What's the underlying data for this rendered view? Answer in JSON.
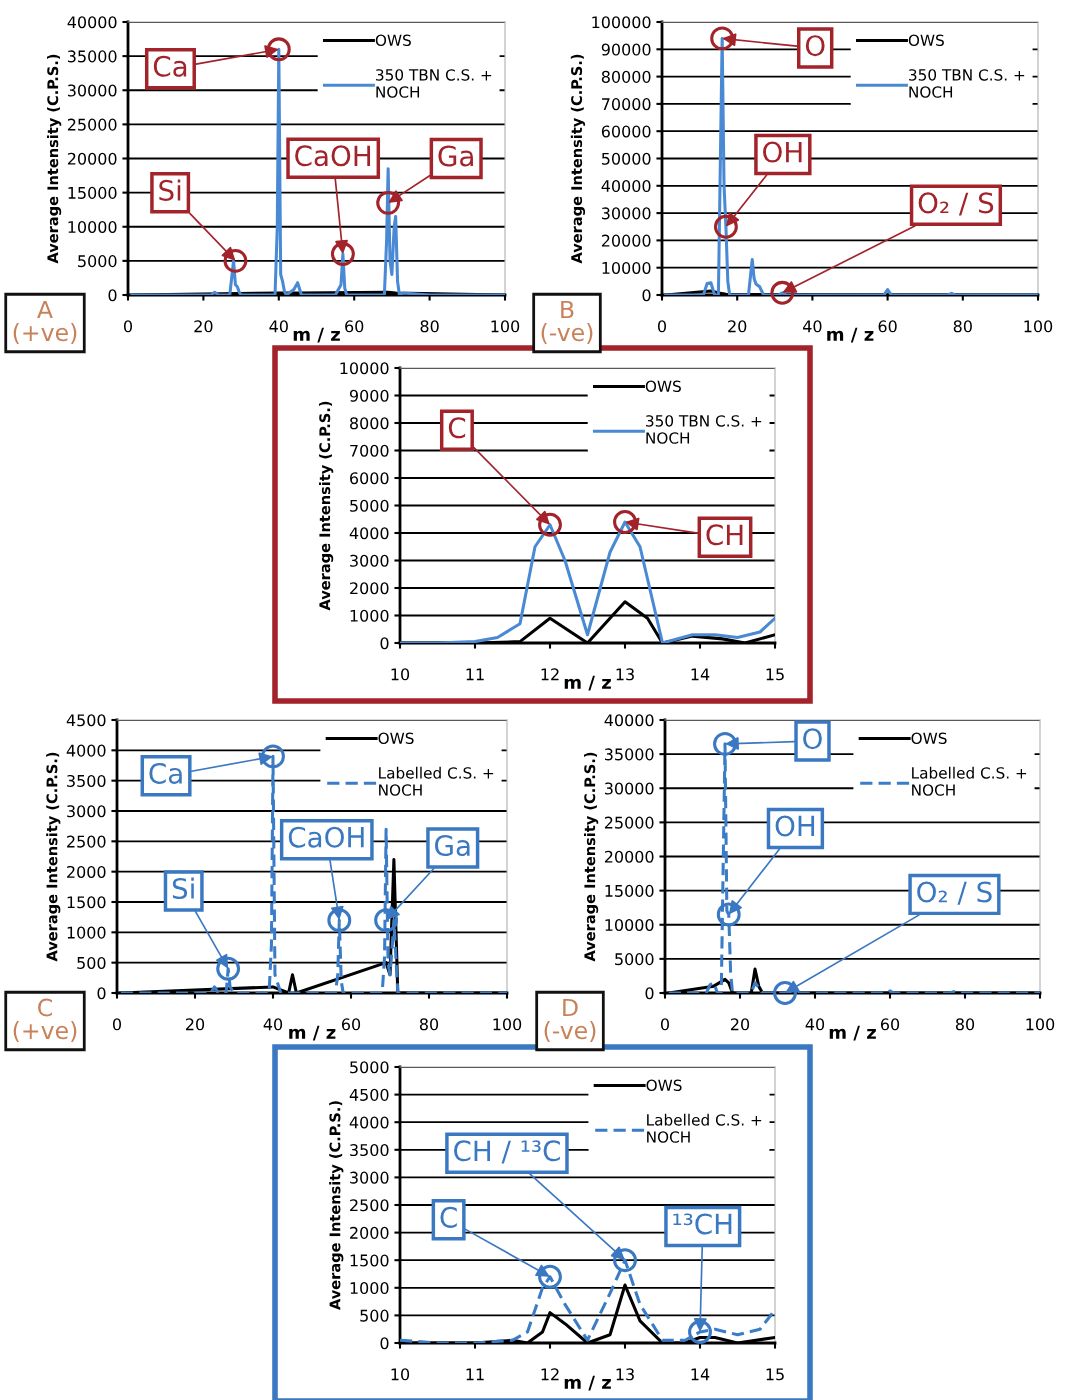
{
  "chart_data": [
    {
      "type": "line",
      "xlabel": "m / z",
      "ylabel": "Average Intensity (C.P.S.)",
      "xlim": [
        0,
        100
      ],
      "xticks": [
        0,
        20,
        40,
        60,
        80,
        100
      ],
      "ylim": [
        0,
        40000
      ],
      "yticks": [
        0,
        5000,
        10000,
        15000,
        20000,
        25000,
        30000,
        35000,
        40000
      ],
      "grid": "y",
      "legend": "top right",
      "series": [
        {
          "name": "OWS",
          "color": "#000000",
          "line_style": "solid",
          "x": [
            1,
            40,
            45,
            69,
            71,
            100
          ],
          "values": [
            0,
            300,
            300,
            400,
            300,
            0
          ]
        },
        {
          "name": "350 TBN C.S. +\nNOCH",
          "color": "#4a8ad4",
          "line_style": "solid",
          "x": [
            1,
            22,
            23,
            24,
            27,
            27.6,
            28,
            28.5,
            29,
            29.6,
            30,
            39,
            39.6,
            40,
            40.5,
            41,
            41.5,
            42,
            44,
            45,
            46,
            55,
            56.5,
            57,
            57.5,
            58,
            68,
            68.6,
            69,
            69.5,
            70,
            70.6,
            71,
            71.5,
            72,
            73,
            80,
            100
          ],
          "values": [
            0,
            0,
            400,
            0,
            0,
            3000,
            5000,
            1500,
            1200,
            300,
            0,
            0,
            10000,
            36000,
            3000,
            2000,
            500,
            0,
            800,
            1800,
            0,
            0,
            1500,
            6000,
            1000,
            0,
            0,
            8000,
            18500,
            5000,
            3000,
            10000,
            11500,
            2000,
            0,
            300,
            0,
            0
          ]
        }
      ],
      "annotations": [
        {
          "text": "Si",
          "x": 28.5,
          "y": 5000
        },
        {
          "text": "Ca",
          "x": 40,
          "y": 36000
        },
        {
          "text": "CaOH",
          "x": 57,
          "y": 6000
        },
        {
          "text": "Ga",
          "x": 69,
          "y": 13500
        },
        "A\n(+ve)"
      ]
    },
    {
      "type": "line",
      "xlabel": "m / z",
      "ylabel": "Average Intensity (C.P.S.)",
      "xlim": [
        0,
        100
      ],
      "xticks": [
        0,
        20,
        40,
        60,
        80,
        100
      ],
      "ylim": [
        0,
        100000
      ],
      "yticks": [
        0,
        10000,
        20000,
        30000,
        40000,
        50000,
        60000,
        70000,
        80000,
        90000,
        100000
      ],
      "grid": "y",
      "legend": "top right",
      "series": [
        {
          "name": "OWS",
          "color": "#000000",
          "line_style": "solid",
          "x": [
            1,
            13,
            16,
            17,
            24,
            100
          ],
          "values": [
            0,
            1500,
            500,
            300,
            200,
            0
          ]
        },
        {
          "name": "350 TBN C.S. +\nNOCH",
          "color": "#4a8ad4",
          "line_style": "solid",
          "x": [
            1,
            11,
            12,
            13,
            14,
            15,
            16,
            16.5,
            17,
            17.5,
            18,
            23,
            24,
            24.5,
            25,
            26,
            27,
            31,
            32,
            33,
            45,
            59,
            60,
            61,
            76,
            77,
            78,
            100
          ],
          "values": [
            0,
            0,
            4200,
            4500,
            0,
            0,
            94000,
            40000,
            25000,
            5000,
            0,
            0,
            13000,
            6000,
            4000,
            3000,
            0,
            0,
            800,
            0,
            0,
            0,
            2000,
            0,
            0,
            600,
            0,
            0
          ]
        }
      ],
      "annotations": [
        {
          "text": "O",
          "x": 16,
          "y": 94000
        },
        {
          "text": "OH",
          "x": 17,
          "y": 25000
        },
        {
          "text": "O₂ / S",
          "x": 32,
          "y": 800
        },
        "B\n(-ve)"
      ]
    },
    {
      "type": "line",
      "xlabel": "m / z",
      "ylabel": "Average Intensity (C.P.S.)",
      "xlim": [
        10,
        15
      ],
      "xticks": [
        10,
        11,
        12,
        13,
        14,
        15
      ],
      "ylim": [
        0,
        10000
      ],
      "yticks": [
        0,
        1000,
        2000,
        3000,
        4000,
        5000,
        6000,
        7000,
        8000,
        9000,
        10000
      ],
      "grid": "y",
      "legend": "top right",
      "series": [
        {
          "name": "OWS",
          "color": "#000000",
          "line_style": "solid",
          "x": [
            10,
            11,
            11.6,
            12,
            12.5,
            13,
            13.3,
            13.5,
            13.9,
            14.3,
            14.6,
            15
          ],
          "values": [
            0,
            0,
            50,
            900,
            0,
            1500,
            900,
            0,
            250,
            150,
            0,
            300
          ]
        },
        {
          "name": "350 TBN C.S. +\nNOCH",
          "color": "#4a8ad4",
          "line_style": "solid",
          "x": [
            10,
            10.5,
            11,
            11.3,
            11.6,
            11.8,
            12,
            12.2,
            12.5,
            12.8,
            13,
            13.2,
            13.5,
            13.9,
            14.2,
            14.5,
            14.8,
            15
          ],
          "values": [
            0,
            0,
            50,
            200,
            700,
            3500,
            4300,
            3000,
            300,
            3300,
            4400,
            3500,
            0,
            300,
            300,
            200,
            400,
            900
          ]
        }
      ],
      "annotations": [
        {
          "text": "C",
          "x": 12,
          "y": 4300
        },
        {
          "text": "CH",
          "x": 13,
          "y": 4400
        }
      ]
    },
    {
      "type": "line",
      "xlabel": "m / z",
      "ylabel": "Average Intensity (C.P.S.)",
      "xlim": [
        0,
        100
      ],
      "xticks": [
        0,
        20,
        40,
        60,
        80,
        100
      ],
      "ylim": [
        0,
        4500
      ],
      "yticks": [
        0,
        500,
        1000,
        1500,
        2000,
        2500,
        3000,
        3500,
        4000,
        4500
      ],
      "grid": "y",
      "legend": "top right",
      "series": [
        {
          "name": "OWS",
          "color": "#000000",
          "line_style": "solid",
          "x": [
            1,
            40,
            44,
            45,
            46,
            69,
            70,
            71,
            72,
            100
          ],
          "values": [
            0,
            100,
            0,
            300,
            0,
            500,
            300,
            2200,
            0,
            0
          ]
        },
        {
          "name": "Labelled C.S. +\nNOCH",
          "color": "#3a7cc8",
          "line_style": "dashed",
          "x": [
            1,
            24,
            25,
            26,
            28,
            28.5,
            29,
            30,
            39,
            39.6,
            40,
            40.5,
            41,
            42,
            56,
            56.6,
            57,
            57.5,
            58,
            68,
            68.6,
            69,
            69.5,
            70,
            70.6,
            71,
            71.5,
            72,
            73,
            100
          ],
          "values": [
            0,
            0,
            100,
            0,
            0,
            400,
            100,
            0,
            0,
            800,
            3900,
            300,
            200,
            0,
            0,
            300,
            1200,
            200,
            0,
            0,
            600,
            2700,
            500,
            300,
            800,
            1200,
            600,
            0,
            0,
            0
          ]
        }
      ],
      "annotations": [
        {
          "text": "Si",
          "x": 28.5,
          "y": 400
        },
        {
          "text": "Ca",
          "x": 40,
          "y": 3900
        },
        {
          "text": "CaOH",
          "x": 57,
          "y": 1200
        },
        {
          "text": "Ga",
          "x": 69,
          "y": 1200
        },
        "C\n(+ve)"
      ]
    },
    {
      "type": "line",
      "xlabel": "m / z",
      "ylabel": "Average Intensity (C.P.S.)",
      "xlim": [
        0,
        100
      ],
      "xticks": [
        0,
        20,
        40,
        60,
        80,
        100
      ],
      "ylim": [
        0,
        40000
      ],
      "yticks": [
        0,
        5000,
        10000,
        15000,
        20000,
        25000,
        30000,
        35000,
        40000
      ],
      "grid": "y",
      "legend": "top right",
      "series": [
        {
          "name": "OWS",
          "color": "#000000",
          "line_style": "solid",
          "x": [
            1,
            13,
            16,
            17,
            18,
            23,
            24,
            25,
            26,
            100
          ],
          "values": [
            0,
            1000,
            2000,
            1500,
            0,
            0,
            3500,
            1000,
            0,
            0
          ]
        },
        {
          "name": "Labelled C.S. +\nNOCH",
          "color": "#3a7cc8",
          "line_style": "dashed",
          "x": [
            1,
            11,
            12,
            13,
            14,
            15,
            16,
            16.5,
            17,
            17.5,
            18,
            23,
            24,
            25,
            26,
            59,
            60,
            61,
            76,
            77,
            78,
            100
          ],
          "values": [
            0,
            0,
            1200,
            1500,
            0,
            0,
            36500,
            12000,
            11500,
            3000,
            0,
            0,
            1500,
            800,
            0,
            0,
            300,
            0,
            0,
            200,
            0,
            0
          ]
        }
      ],
      "annotations": [
        {
          "text": "O",
          "x": 16,
          "y": 36500
        },
        {
          "text": "OH",
          "x": 17,
          "y": 11500
        },
        {
          "text": "O₂ / S",
          "x": 32,
          "y": 0
        },
        "D\n(-ve)"
      ]
    },
    {
      "type": "line",
      "xlabel": "m / z",
      "ylabel": "Average Intensity (C.P.S.)",
      "xlim": [
        10,
        15
      ],
      "xticks": [
        10,
        11,
        12,
        13,
        14,
        15
      ],
      "ylim": [
        0,
        5000
      ],
      "yticks": [
        0,
        500,
        1000,
        1500,
        2000,
        2500,
        3000,
        3500,
        4000,
        4500,
        5000
      ],
      "grid": "y",
      "legend": "top right",
      "series": [
        {
          "name": "OWS",
          "color": "#000000",
          "line_style": "solid",
          "x": [
            10,
            11,
            11.5,
            11.7,
            11.9,
            12,
            12.2,
            12.5,
            12.8,
            13,
            13.2,
            13.5,
            13.8,
            14,
            14.2,
            14.5,
            15
          ],
          "values": [
            0,
            0,
            50,
            0,
            200,
            550,
            350,
            0,
            150,
            1050,
            400,
            0,
            0,
            100,
            100,
            0,
            100
          ]
        },
        {
          "name": "Labelled C.S. +\nNOCH",
          "color": "#3a7cc8",
          "line_style": "dashed",
          "x": [
            10,
            10.5,
            11,
            11.5,
            11.7,
            11.9,
            12,
            12.2,
            12.5,
            12.8,
            13,
            13.2,
            13.5,
            13.8,
            14,
            14.2,
            14.5,
            14.8,
            15
          ],
          "values": [
            50,
            0,
            0,
            50,
            200,
            1000,
            1200,
            700,
            50,
            900,
            1500,
            700,
            50,
            50,
            200,
            250,
            150,
            250,
            600
          ]
        }
      ],
      "annotations": [
        {
          "text": "C",
          "x": 12,
          "y": 1200
        },
        {
          "text": "CH / ¹³C",
          "x": 13,
          "y": 1500
        },
        {
          "text": "¹³CH",
          "x": 14,
          "y": 200
        }
      ]
    }
  ]
}
